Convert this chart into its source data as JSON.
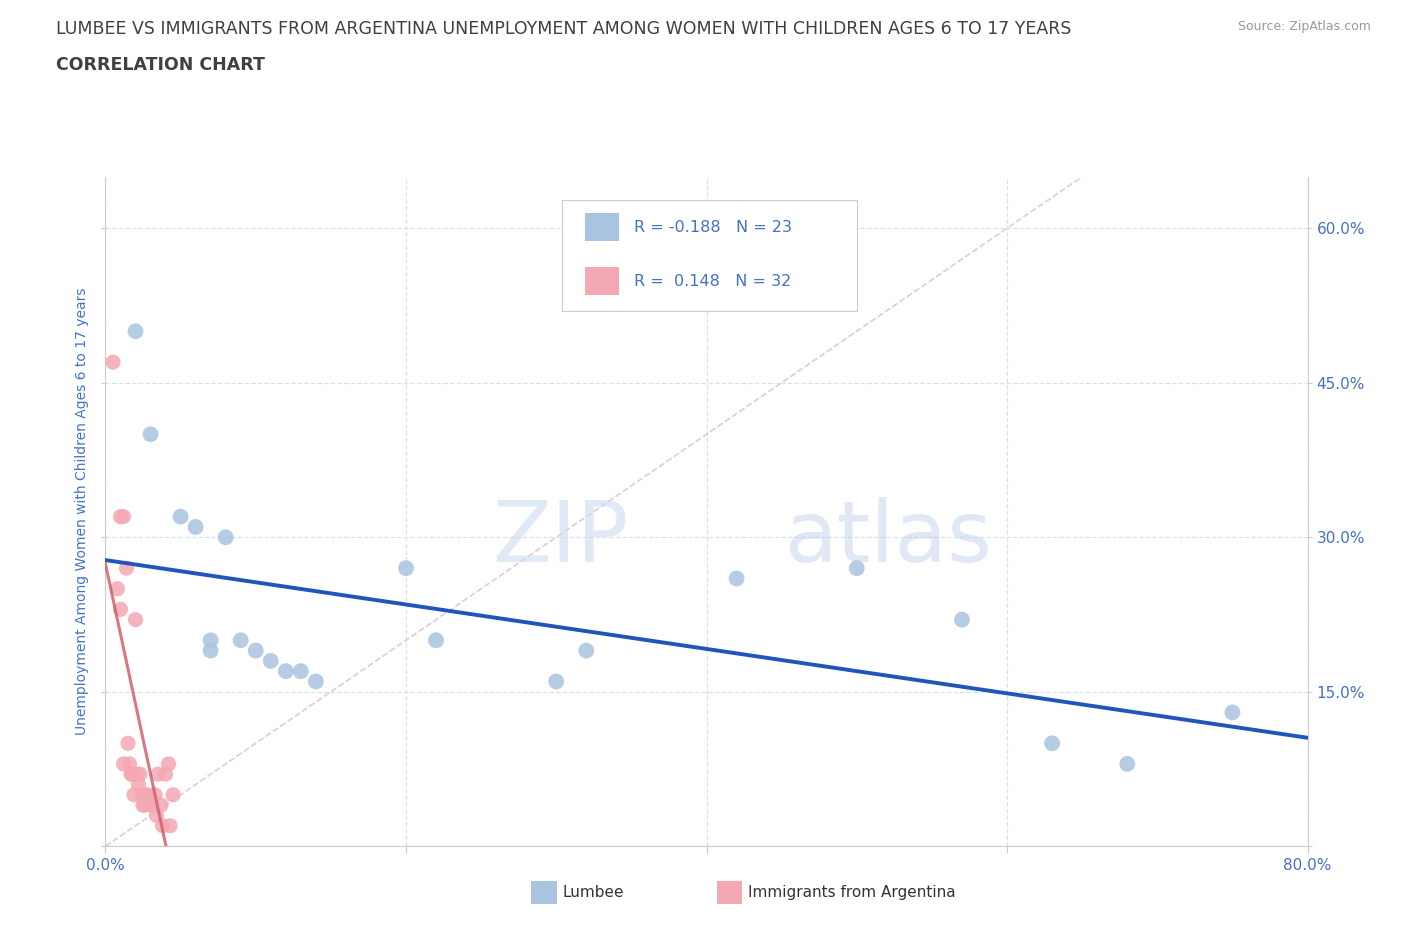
{
  "title": "LUMBEE VS IMMIGRANTS FROM ARGENTINA UNEMPLOYMENT AMONG WOMEN WITH CHILDREN AGES 6 TO 17 YEARS",
  "subtitle": "CORRELATION CHART",
  "source": "Source: ZipAtlas.com",
  "ylabel": "Unemployment Among Women with Children Ages 6 to 17 years",
  "xlim": [
    0.0,
    0.8
  ],
  "ylim": [
    0.0,
    0.65
  ],
  "xtick_positions": [
    0.0,
    0.2,
    0.4,
    0.6,
    0.8
  ],
  "xtick_labels": [
    "0.0%",
    "",
    "",
    "",
    "80.0%"
  ],
  "ytick_positions": [
    0.0,
    0.15,
    0.3,
    0.45,
    0.6
  ],
  "ytick_labels_right": [
    "",
    "15.0%",
    "30.0%",
    "45.0%",
    "60.0%"
  ],
  "lumbee_color": "#a8c4e0",
  "argentina_color": "#f4a8b4",
  "trendline_lumbee_color": "#2255bb",
  "trendline_argentina_color": "#d06070",
  "diagonal_color": "#cccccc",
  "R_lumbee": -0.188,
  "N_lumbee": 23,
  "R_argentina": 0.148,
  "N_argentina": 32,
  "lumbee_x": [
    0.02,
    0.03,
    0.05,
    0.06,
    0.07,
    0.07,
    0.08,
    0.09,
    0.1,
    0.11,
    0.12,
    0.13,
    0.14,
    0.2,
    0.22,
    0.3,
    0.32,
    0.42,
    0.5,
    0.57,
    0.63,
    0.68,
    0.75
  ],
  "lumbee_y": [
    0.5,
    0.4,
    0.32,
    0.31,
    0.19,
    0.2,
    0.3,
    0.2,
    0.19,
    0.18,
    0.17,
    0.17,
    0.16,
    0.27,
    0.2,
    0.16,
    0.19,
    0.26,
    0.27,
    0.22,
    0.1,
    0.08,
    0.13
  ],
  "argentina_x": [
    0.005,
    0.008,
    0.01,
    0.01,
    0.012,
    0.012,
    0.014,
    0.015,
    0.016,
    0.017,
    0.018,
    0.019,
    0.02,
    0.021,
    0.022,
    0.023,
    0.024,
    0.025,
    0.026,
    0.027,
    0.028,
    0.03,
    0.031,
    0.033,
    0.034,
    0.035,
    0.037,
    0.038,
    0.04,
    0.042,
    0.043,
    0.045
  ],
  "argentina_y": [
    0.47,
    0.25,
    0.23,
    0.32,
    0.32,
    0.08,
    0.27,
    0.1,
    0.08,
    0.07,
    0.07,
    0.05,
    0.22,
    0.07,
    0.06,
    0.07,
    0.05,
    0.04,
    0.04,
    0.05,
    0.05,
    0.04,
    0.04,
    0.05,
    0.03,
    0.07,
    0.04,
    0.02,
    0.07,
    0.08,
    0.02,
    0.05
  ],
  "watermark_zip": "ZIP",
  "watermark_atlas": "atlas",
  "background_color": "#ffffff",
  "grid_color": "#d4ddf0",
  "title_color": "#404040",
  "axis_color": "#4472c4"
}
